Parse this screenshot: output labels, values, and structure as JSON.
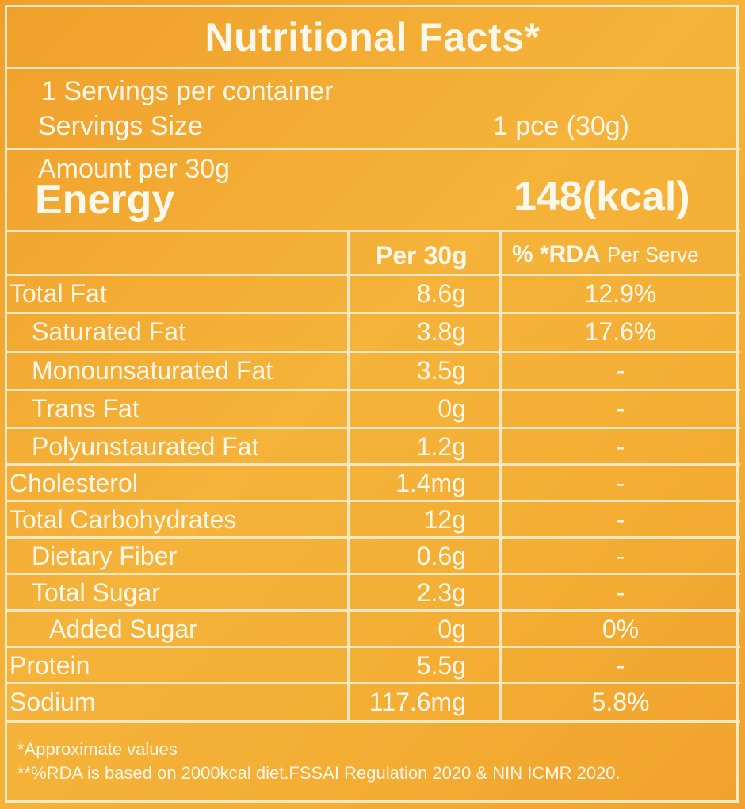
{
  "title": "Nutritional Facts*",
  "servings": {
    "per_container": "1 Servings per container",
    "size_label": "Servings Size",
    "size_value": "1 pce (30g)"
  },
  "energy": {
    "amount_label": "Amount per 30g",
    "label": "Energy",
    "value": "148(kcal)"
  },
  "table": {
    "headers": {
      "per": "Per 30g",
      "rda_pct": "% *RDA",
      "rda_suffix": "Per Serve"
    },
    "rows": [
      {
        "name": "Total Fat",
        "indent": 0,
        "per": "8.6g",
        "rda": "12.9%"
      },
      {
        "name": "Saturated Fat",
        "indent": 1,
        "per": "3.8g",
        "rda": "17.6%"
      },
      {
        "name": "Monounsaturated Fat",
        "indent": 1,
        "per": "3.5g",
        "rda": "-"
      },
      {
        "name": "Trans Fat",
        "indent": 1,
        "per": "0g",
        "rda": "-"
      },
      {
        "name": "Polyunstaurated Fat",
        "indent": 1,
        "per": "1.2g",
        "rda": "-"
      },
      {
        "name": "Cholesterol",
        "indent": 0,
        "per": "1.4mg",
        "rda": "-"
      },
      {
        "name": "Total Carbohydrates",
        "indent": 0,
        "per": "12g",
        "rda": "-"
      },
      {
        "name": "Dietary Fiber",
        "indent": 1,
        "per": "0.6g",
        "rda": "-"
      },
      {
        "name": "Total Sugar",
        "indent": 1,
        "per": "2.3g",
        "rda": "-"
      },
      {
        "name": "Added Sugar",
        "indent": 2,
        "per": "0g",
        "rda": "0%"
      },
      {
        "name": "Protein",
        "indent": 0,
        "per": "5.5g",
        "rda": "-"
      },
      {
        "name": "Sodium",
        "indent": 0,
        "per": "117.6mg",
        "rda": "5.8%"
      }
    ]
  },
  "footnotes": {
    "approx": "*Approximate values",
    "rda_basis": "**%RDA is based on 2000kcal diet.FSSAI Regulation 2020 & NIN ICMR 2020."
  },
  "colors": {
    "background": "#f4ae34",
    "lines": "#fbe7c2",
    "text": "#fff8ea"
  }
}
